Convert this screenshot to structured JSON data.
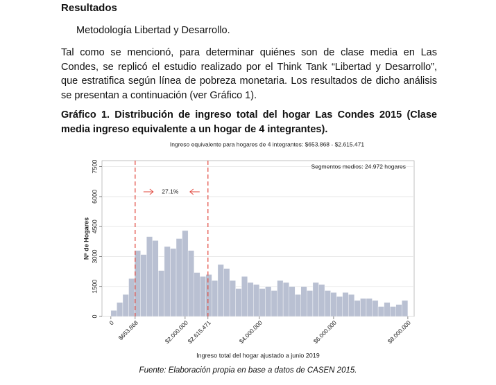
{
  "heading": "Resultados",
  "subheading": "Metodología Libertad y Desarrollo.",
  "paragraph": "Tal como se mencionó, para determinar quiénes son de clase media en Las Condes, se replicó el estudio realizado por el Think Tank “Libertad y Desarrollo”, que estratifica según línea de pobreza monetaria. Los resultados de dicho análisis se presentan a continuación (ver Gráfico 1).",
  "caption": "Gráfico 1. Distribución de ingreso total del hogar Las Condes 2015 (Clase media ingreso equivalente a un hogar de 4 integrantes).",
  "chart_data": {
    "type": "histogram",
    "title": "Ingreso equivalente para hogares de 4 integrantes: $653.868 - $2.615.471",
    "annotation": "Segmentos medios: 24.972 hogares",
    "range_label": "27.1%",
    "x_label": "Ingreso total del hogar ajustado a junio 2019",
    "y_label": "Nº de Hogares",
    "color": "#b9c0d2",
    "grid": true,
    "xlim": [
      -240000,
      8170000
    ],
    "ylim": [
      0,
      7800
    ],
    "yticks": [
      0,
      1500,
      3000,
      4500,
      6000,
      7500
    ],
    "xticks": [
      0,
      {
        "value": 653868,
        "label": "$653.868",
        "color": "#e0443a"
      },
      {
        "value": 2000000,
        "label": "$2.000.000"
      },
      {
        "value": 2615471,
        "label": "$2.615.471",
        "color": "#e0443a"
      },
      {
        "value": 4000000,
        "label": "$4.000.000"
      },
      {
        "value": 6000000,
        "label": "$6.000.000"
      },
      {
        "value": 8000000,
        "label": "$8.000.000"
      }
    ],
    "bins": [
      0,
      160000,
      320000,
      480000,
      640000,
      800000,
      960000,
      1120000,
      1280000,
      1440000,
      1600000,
      1760000,
      1920000,
      2080000,
      2240000,
      2400000,
      2560000,
      2720000,
      2880000,
      3040000,
      3200000,
      3360000,
      3520000,
      3680000,
      3840000,
      4000000,
      4160000,
      4320000,
      4480000,
      4640000,
      4800000,
      4960000,
      5120000,
      5280000,
      5440000,
      5600000,
      5760000,
      5920000,
      6080000,
      6240000,
      6400000,
      6560000,
      6720000,
      6880000,
      7040000,
      7200000,
      7360000,
      7520000,
      7680000,
      7840000,
      8000000
    ],
    "values": [
      300,
      700,
      1100,
      1900,
      3300,
      3100,
      4000,
      3800,
      2300,
      3500,
      3400,
      3900,
      4300,
      3300,
      2200,
      2000,
      2100,
      1800,
      2600,
      2400,
      1800,
      1400,
      2000,
      1700,
      1600,
      1400,
      1500,
      1300,
      1800,
      1700,
      1500,
      1100,
      1500,
      1300,
      1700,
      1600,
      1300,
      1200,
      1000,
      1200,
      1100,
      800,
      900,
      900,
      800,
      500,
      700,
      500,
      600,
      800
    ]
  },
  "source": "Fuente: Elaboración propia en base a datos de CASEN 2015."
}
